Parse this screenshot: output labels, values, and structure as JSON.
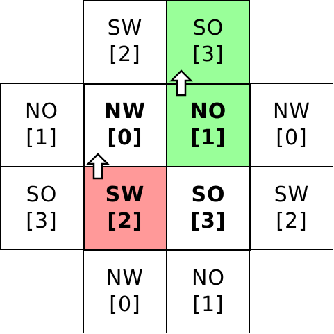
{
  "colors": {
    "green": "#99ff99",
    "red": "#ff9999",
    "white": "#ffffff",
    "border": "#000000"
  },
  "cells": {
    "top_left": {
      "label": "SW",
      "index": "[2]"
    },
    "top_right": {
      "label": "SO",
      "index": "[3]"
    },
    "left_top": {
      "label": "NO",
      "index": "[1]"
    },
    "center_nw": {
      "label": "NW",
      "index": "[0]"
    },
    "center_no": {
      "label": "NO",
      "index": "[1]"
    },
    "right_top": {
      "label": "NW",
      "index": "[0]"
    },
    "left_bottom": {
      "label": "SO",
      "index": "[3]"
    },
    "center_sw": {
      "label": "SW",
      "index": "[2]"
    },
    "center_so": {
      "label": "SO",
      "index": "[3]"
    },
    "right_bottom": {
      "label": "SW",
      "index": "[2]"
    },
    "bottom_left": {
      "label": "NW",
      "index": "[0]"
    },
    "bottom_right": {
      "label": "NO",
      "index": "[1]"
    }
  },
  "arrows": [
    {
      "name": "arrow-up-icon",
      "direction": "up"
    },
    {
      "name": "arrow-up-icon",
      "direction": "up"
    }
  ]
}
